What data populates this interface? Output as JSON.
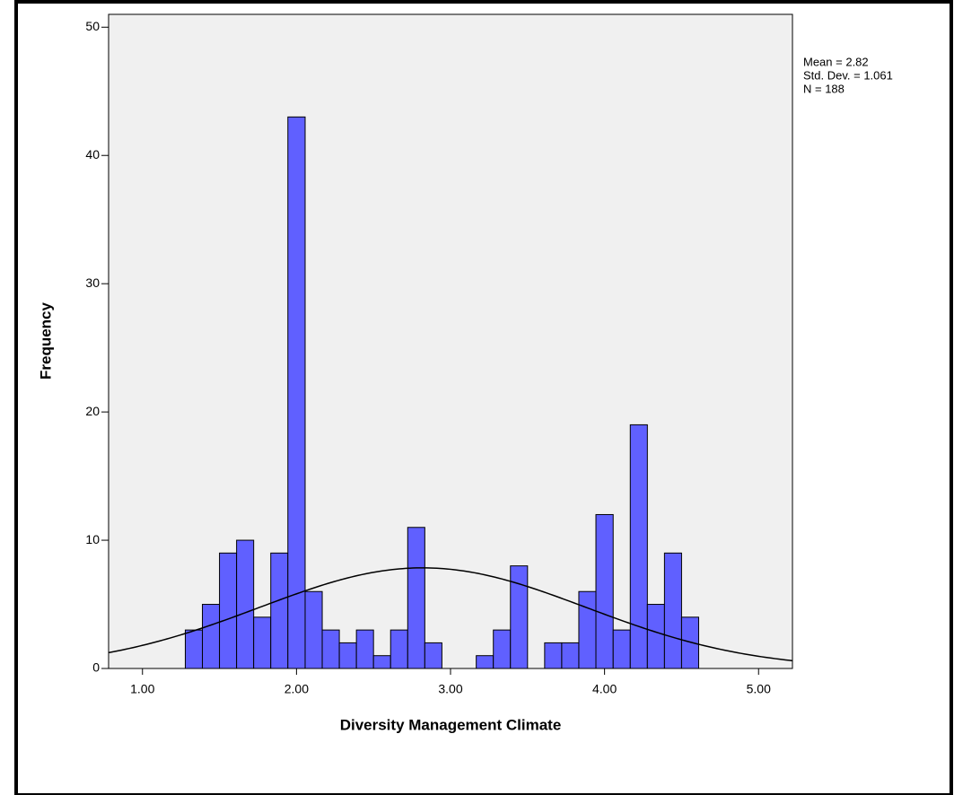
{
  "chart_data": {
    "type": "histogram",
    "x_label": "Diversity Management Climate",
    "y_label": "Frequency",
    "bins": [
      1.278,
      1.389,
      1.5,
      1.611,
      1.722,
      1.833,
      1.944,
      2.056,
      2.167,
      2.278,
      2.389,
      2.5,
      2.611,
      2.722,
      2.833,
      2.944,
      3.056,
      3.167,
      3.278,
      3.389,
      3.5,
      3.611,
      3.722,
      3.833,
      3.944,
      4.056,
      4.167,
      4.278,
      4.389,
      4.5,
      4.611
    ],
    "values": [
      3,
      5,
      9,
      10,
      4,
      9,
      43,
      6,
      3,
      2,
      3,
      1,
      3,
      11,
      2,
      0,
      0,
      1,
      3,
      8,
      0,
      2,
      2,
      6,
      12,
      3,
      19,
      5,
      9,
      4
    ],
    "color": "#6060ff",
    "xlim": [
      0.78,
      5.22
    ],
    "ylim": [
      0,
      51
    ],
    "xticks": [
      {
        "value": 1,
        "label": "1.00"
      },
      {
        "value": 2,
        "label": "2.00"
      },
      {
        "value": 3,
        "label": "3.00"
      },
      {
        "value": 4,
        "label": "4.00"
      },
      {
        "value": 5,
        "label": "5.00"
      }
    ],
    "yticks": [
      0,
      10,
      20,
      30,
      40,
      50
    ],
    "normal_curve": true,
    "stats": {
      "mean": {
        "value": 2.82,
        "label": "Mean = 2.82"
      },
      "sd": {
        "value": 1.061,
        "label": "Std. Dev. = 1.061"
      },
      "n": {
        "value": 188,
        "label": "N = 188"
      }
    }
  }
}
